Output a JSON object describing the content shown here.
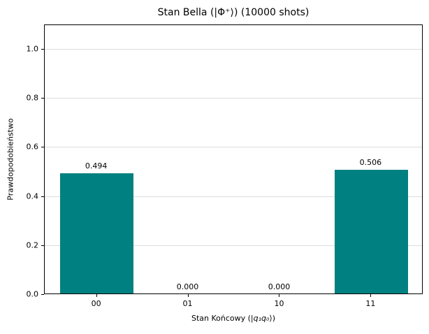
{
  "chart_data": {
    "type": "bar",
    "title": "Stan Bella (|Φ⁺⟩) (10000 shots)",
    "shots_shown_in_title": 10000,
    "ylabel": "Prawdopodobieństwo",
    "xlabel_parts": {
      "pre": "Stan Końcowy (|",
      "var": "q₁q₀",
      "post": "⟩)"
    },
    "categories": [
      "00",
      "01",
      "10",
      "11"
    ],
    "values": [
      0.494,
      0.0,
      0.0,
      0.506
    ],
    "bar_labels": [
      "0.494",
      "0.000",
      "0.000",
      "0.506"
    ],
    "yticks": [
      0.0,
      0.2,
      0.4,
      0.6,
      0.8,
      1.0
    ],
    "ytick_labels": [
      "0.0",
      "0.2",
      "0.4",
      "0.6",
      "0.8",
      "1.0"
    ],
    "ylim": [
      0,
      1.1
    ],
    "xlim": [
      -0.57,
      3.57
    ],
    "bar_width": 0.8,
    "bar_color": "#008080",
    "grid_color": "#dcdcdc",
    "grid": "horizontal gridlines at y ticks, behind bars",
    "legend": "none"
  }
}
